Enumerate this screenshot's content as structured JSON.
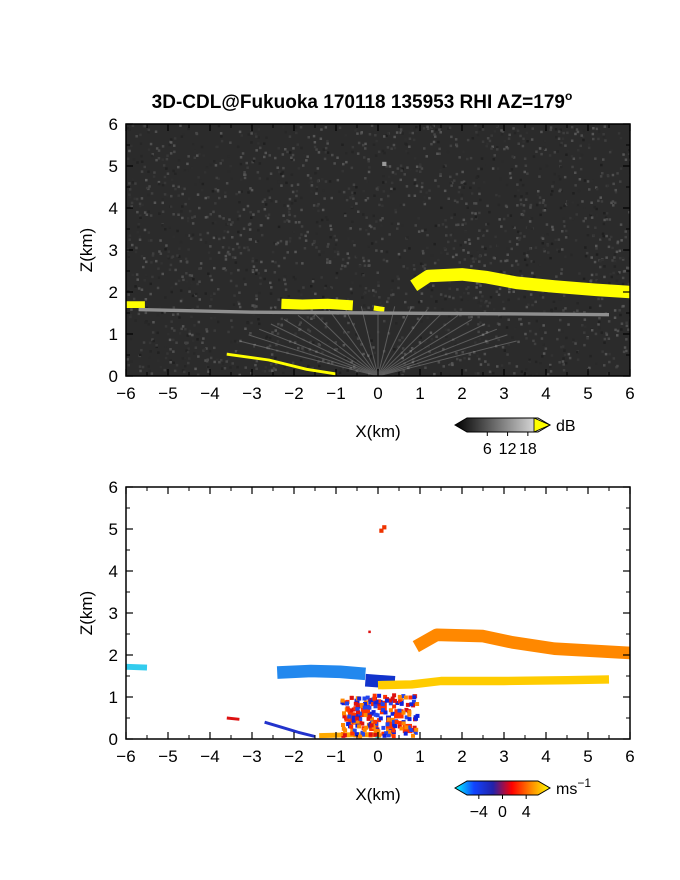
{
  "title": "3D-CDL@Fukuoka 170118 135953 RHI AZ=179",
  "title_degree": "o",
  "chart_data": [
    {
      "type": "heatmap",
      "name": "",
      "xlabel": "X(km)",
      "ylabel": "Z(km)",
      "xlim": [
        -6,
        6
      ],
      "ylim": [
        0,
        6
      ],
      "xticks": [
        "−6",
        "−5",
        "−4",
        "−3",
        "−2",
        "−1",
        "0",
        "1",
        "2",
        "3",
        "4",
        "5",
        "6"
      ],
      "yticks": [
        "0",
        "1",
        "2",
        "3",
        "4",
        "5",
        "6"
      ],
      "background": "#2b2b2b",
      "colorbar": {
        "unit": "dB",
        "ticks": [
          "6",
          "12",
          "18"
        ],
        "range": [
          0,
          21
        ]
      },
      "features": [
        {
          "kind": "band",
          "points": [
            [
              -6.0,
              1.7
            ],
            [
              -5.55,
              1.7
            ]
          ],
          "thickness": 0.16,
          "color": "#ffff00"
        },
        {
          "kind": "band",
          "points": [
            [
              -2.3,
              1.72
            ],
            [
              -1.8,
              1.7
            ],
            [
              -1.2,
              1.72
            ],
            [
              -0.6,
              1.68
            ]
          ],
          "thickness": 0.24,
          "color": "#ffff00"
        },
        {
          "kind": "band",
          "points": [
            [
              -0.1,
              1.62
            ],
            [
              0.15,
              1.58
            ]
          ],
          "thickness": 0.12,
          "color": "#ffff00"
        },
        {
          "kind": "band",
          "points": [
            [
              0.85,
              2.15
            ],
            [
              1.2,
              2.38
            ],
            [
              2.0,
              2.42
            ],
            [
              2.6,
              2.35
            ],
            [
              3.3,
              2.22
            ],
            [
              4.2,
              2.13
            ],
            [
              5.2,
              2.05
            ],
            [
              6.0,
              2.0
            ]
          ],
          "thickness": 0.3,
          "color": "#ffff00"
        },
        {
          "kind": "band",
          "points": [
            [
              -3.6,
              0.52
            ],
            [
              -2.6,
              0.38
            ],
            [
              -1.7,
              0.16
            ],
            [
              -1.0,
              0.05
            ]
          ],
          "thickness": 0.07,
          "color": "#ffff00"
        },
        {
          "kind": "band",
          "points": [
            [
              -5.7,
              1.58
            ],
            [
              -3,
              1.52
            ],
            [
              0,
              1.5
            ],
            [
              3,
              1.48
            ],
            [
              5.5,
              1.46
            ]
          ],
          "thickness": 0.08,
          "color": "#8f8f8f"
        },
        {
          "kind": "blob",
          "points": [
            [
              0.15,
              5.05
            ]
          ],
          "thickness": 0.1,
          "color": "#9a9a9a"
        }
      ]
    },
    {
      "type": "heatmap",
      "name": "",
      "xlabel": "X(km)",
      "ylabel": "Z(km)",
      "xlim": [
        -6,
        6
      ],
      "ylim": [
        0,
        6
      ],
      "xticks": [
        "−6",
        "−5",
        "−4",
        "−3",
        "−2",
        "−1",
        "0",
        "1",
        "2",
        "3",
        "4",
        "5",
        "6"
      ],
      "yticks": [
        "0",
        "1",
        "2",
        "3",
        "4",
        "5",
        "6"
      ],
      "background": "#ffffff",
      "colorbar": {
        "unit": "ms",
        "unit_exp": "−1",
        "ticks": [
          "−4",
          "0",
          "4"
        ],
        "range": [
          -6,
          6
        ]
      },
      "features": [
        {
          "kind": "band",
          "points": [
            [
              -6.0,
              1.72
            ],
            [
              -5.5,
              1.7
            ]
          ],
          "thickness": 0.14,
          "color": "#33ccee"
        },
        {
          "kind": "band",
          "points": [
            [
              -2.4,
              1.58
            ],
            [
              -1.6,
              1.62
            ],
            [
              -0.9,
              1.6
            ],
            [
              -0.3,
              1.55
            ]
          ],
          "thickness": 0.3,
          "color": "#2288ee"
        },
        {
          "kind": "band",
          "points": [
            [
              -0.3,
              1.4
            ],
            [
              0.4,
              1.35
            ]
          ],
          "thickness": 0.3,
          "color": "#1133cc"
        },
        {
          "kind": "band",
          "points": [
            [
              0.0,
              1.28
            ],
            [
              0.8,
              1.3
            ],
            [
              1.5,
              1.38
            ],
            [
              3.0,
              1.38
            ],
            [
              4.5,
              1.4
            ],
            [
              5.5,
              1.42
            ]
          ],
          "thickness": 0.2,
          "color": "#ffcc00"
        },
        {
          "kind": "band",
          "points": [
            [
              0.9,
              2.2
            ],
            [
              1.4,
              2.48
            ],
            [
              2.5,
              2.45
            ],
            [
              3.2,
              2.3
            ],
            [
              4.2,
              2.15
            ],
            [
              6.0,
              2.05
            ]
          ],
          "thickness": 0.3,
          "color": "#ff8800"
        },
        {
          "kind": "blob",
          "points": [
            [
              -0.3,
              0.7
            ],
            [
              0.1,
              0.8
            ],
            [
              0.5,
              0.6
            ],
            [
              -0.1,
              0.3
            ],
            [
              0.3,
              0.35
            ],
            [
              -0.6,
              0.45
            ],
            [
              0.7,
              0.25
            ]
          ],
          "thickness": 0.22,
          "color": "#ff3300"
        },
        {
          "kind": "blob",
          "points": [
            [
              -0.2,
              0.55
            ],
            [
              0.25,
              0.5
            ],
            [
              0.55,
              0.9
            ],
            [
              -0.5,
              0.9
            ]
          ],
          "thickness": 0.12,
          "color": "#1122dd"
        },
        {
          "kind": "band",
          "points": [
            [
              -3.6,
              0.5
            ],
            [
              -3.3,
              0.47
            ]
          ],
          "thickness": 0.07,
          "color": "#dd1111"
        },
        {
          "kind": "band",
          "points": [
            [
              -2.7,
              0.4
            ],
            [
              -2.3,
              0.28
            ],
            [
              -1.9,
              0.16
            ],
            [
              -1.5,
              0.06
            ]
          ],
          "thickness": 0.07,
          "color": "#2233cc"
        },
        {
          "kind": "band",
          "points": [
            [
              -1.4,
              0.08
            ],
            [
              -0.6,
              0.1
            ],
            [
              0.0,
              0.1
            ]
          ],
          "thickness": 0.12,
          "color": "#ffaa00"
        },
        {
          "kind": "blob",
          "points": [
            [
              0.0,
              0.08
            ]
          ],
          "thickness": 0.12,
          "color": "#33dddd"
        },
        {
          "kind": "blob",
          "points": [
            [
              0.15,
              5.04
            ],
            [
              0.08,
              4.96
            ]
          ],
          "thickness": 0.1,
          "color": "#ee3300"
        },
        {
          "kind": "blob",
          "points": [
            [
              -0.2,
              2.55
            ]
          ],
          "thickness": 0.06,
          "color": "#dd1111"
        }
      ]
    }
  ]
}
